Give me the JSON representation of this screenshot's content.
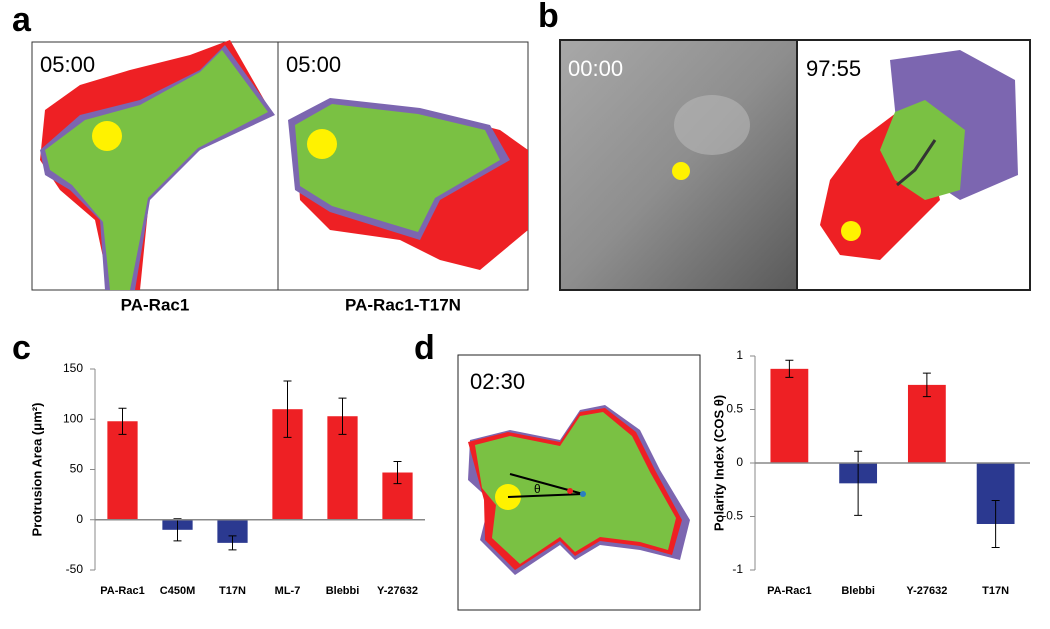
{
  "panel_labels": [
    "a",
    "b",
    "c",
    "d"
  ],
  "images": [
    {
      "label": "05:00",
      "caption": "PA-Rac1"
    },
    {
      "label": "05:00",
      "caption": "PA-Rac1-T17N"
    },
    {
      "label": "00:00"
    },
    {
      "label": "97:55"
    },
    {
      "label": "02:30",
      "angle_label": "θ"
    }
  ],
  "chart_data": [
    {
      "type": "bar",
      "y_label": "Protrusion Area (μm²)",
      "categories": [
        "PA-Rac1",
        "C450M",
        "T17N",
        "ML-7",
        "Blebbi",
        "Y-27632"
      ],
      "values": [
        98,
        -10,
        -23,
        110,
        103,
        47
      ],
      "errors": [
        13,
        11,
        7,
        28,
        18,
        11
      ],
      "colors": [
        "#ee2024",
        "#2b3990",
        "#2b3990",
        "#ee2024",
        "#ee2024",
        "#ee2024"
      ],
      "ylim": [
        -50,
        150
      ],
      "yticks": [
        -50,
        0,
        50,
        100,
        150
      ],
      "grid": false
    },
    {
      "type": "bar",
      "y_label": "Polarity Index (COS θ)",
      "categories": [
        "PA-Rac1",
        "Blebbi",
        "Y-27632",
        "T17N"
      ],
      "values": [
        0.88,
        -0.19,
        0.73,
        -0.57
      ],
      "errors": [
        0.08,
        0.3,
        0.11,
        0.22
      ],
      "colors": [
        "#ee2024",
        "#2b3990",
        "#ee2024",
        "#2b3990"
      ],
      "ylim": [
        -1,
        1
      ],
      "yticks": [
        -1,
        -0.5,
        0,
        0.5,
        1
      ],
      "grid": false
    }
  ]
}
